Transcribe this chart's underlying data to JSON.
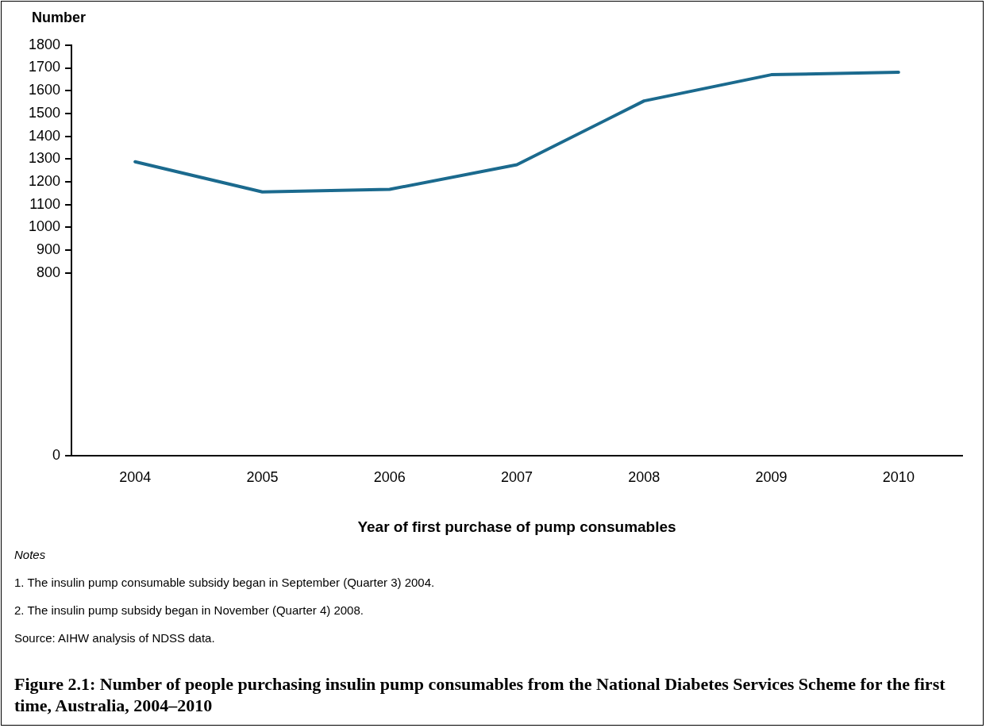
{
  "chart_data": {
    "type": "line",
    "title": "Figure 2.1: Number of people purchasing insulin pump consumables from the National Diabetes Services Scheme for the first time, Australia, 2004–2010",
    "ylabel": "Number",
    "xlabel": "Year of first purchase of pump consumables",
    "categories": [
      "2004",
      "2005",
      "2006",
      "2007",
      "2008",
      "2009",
      "2010"
    ],
    "series": [
      {
        "color": "#1b6a8e",
        "values": [
          1288,
          1156,
          1167,
          1275,
          1555,
          1670,
          1681
        ]
      }
    ],
    "ylim": [
      0,
      1800
    ],
    "yticks": [
      0,
      800,
      900,
      1000,
      1100,
      1200,
      1300,
      1400,
      1500,
      1600,
      1700,
      1800
    ],
    "grid": false,
    "legend": false,
    "marker": "none",
    "line_style": "solid",
    "annotations": [
      "Notes",
      "1.    The insulin pump consumable subsidy began in September (Quarter 3) 2004.",
      "2.    The insulin pump subsidy began in November (Quarter 4) 2008.",
      "Source: AIHW analysis of NDSS data."
    ]
  }
}
